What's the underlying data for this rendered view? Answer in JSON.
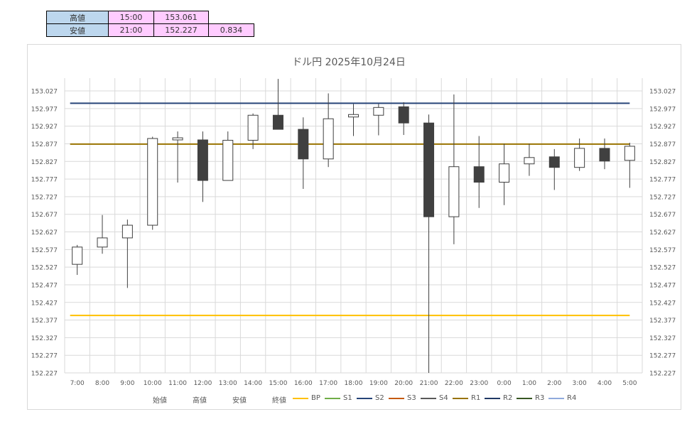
{
  "summary": {
    "high_label": "高値",
    "high_time": "15:00",
    "high_value": "153.061",
    "low_label": "安値",
    "low_time": "21:00",
    "low_value": "152.227",
    "range": "0.834"
  },
  "chart_data": {
    "type": "candlestick",
    "title": "ドル円  2025年10月24日",
    "ylim": [
      152.227,
      153.027
    ],
    "ytick_labels": [
      "153.027",
      "152.977",
      "152.927",
      "152.877",
      "152.827",
      "152.777",
      "152.727",
      "152.677",
      "152.627",
      "152.577",
      "152.527",
      "152.477",
      "152.427",
      "152.377",
      "152.327",
      "152.277",
      "152.227"
    ],
    "grid": true,
    "categories": [
      "7:00",
      "8:00",
      "9:00",
      "10:00",
      "11:00",
      "12:00",
      "13:00",
      "14:00",
      "15:00",
      "16:00",
      "17:00",
      "18:00",
      "19:00",
      "20:00",
      "21:00",
      "22:00",
      "23:00",
      "0:00",
      "1:00",
      "2:00",
      "3:00",
      "4:00",
      "5:00"
    ],
    "open": [
      152.535,
      152.584,
      152.61,
      152.646,
      152.888,
      152.888,
      152.773,
      152.887,
      152.958,
      152.918,
      152.834,
      152.953,
      152.958,
      152.982,
      152.936,
      152.67,
      152.812,
      152.768,
      152.82,
      152.84,
      152.81,
      152.864,
      152.83
    ],
    "high": [
      152.59,
      152.675,
      152.662,
      152.897,
      152.912,
      152.912,
      152.912,
      152.963,
      153.061,
      152.952,
      153.02,
      152.99,
      152.99,
      152.995,
      152.96,
      153.017,
      152.899,
      152.877,
      152.877,
      152.862,
      152.892,
      152.892,
      152.88
    ],
    "low": [
      152.505,
      152.565,
      152.468,
      152.633,
      152.767,
      152.712,
      152.773,
      152.862,
      152.918,
      152.749,
      152.811,
      152.899,
      152.901,
      152.902,
      152.227,
      152.592,
      152.695,
      152.703,
      152.786,
      152.746,
      152.8,
      152.805,
      152.752
    ],
    "close": [
      152.584,
      152.61,
      152.646,
      152.892,
      152.894,
      152.773,
      152.887,
      152.958,
      152.918,
      152.834,
      152.948,
      152.96,
      152.98,
      152.936,
      152.67,
      152.812,
      152.768,
      152.82,
      152.838,
      152.81,
      152.864,
      152.828,
      152.87
    ],
    "series": [
      {
        "name": "BP",
        "value": 152.39,
        "color": "#ffc000"
      },
      {
        "name": "S1",
        "value": null,
        "color": "#70ad47"
      },
      {
        "name": "S2",
        "value": 152.992,
        "color": "#264478"
      },
      {
        "name": "S3",
        "value": null,
        "color": "#c55a11"
      },
      {
        "name": "S4",
        "value": null,
        "color": "#595959"
      },
      {
        "name": "R1",
        "value": 152.876,
        "color": "#997300"
      },
      {
        "name": "R2",
        "value": null,
        "color": "#203864"
      },
      {
        "name": "R3",
        "value": null,
        "color": "#375623"
      },
      {
        "name": "R4",
        "value": null,
        "color": "#8faadc"
      }
    ],
    "legend_text": [
      "始値",
      "高値",
      "安値",
      "終値"
    ],
    "up_color": "#ffffff",
    "down_color": "#404040"
  }
}
